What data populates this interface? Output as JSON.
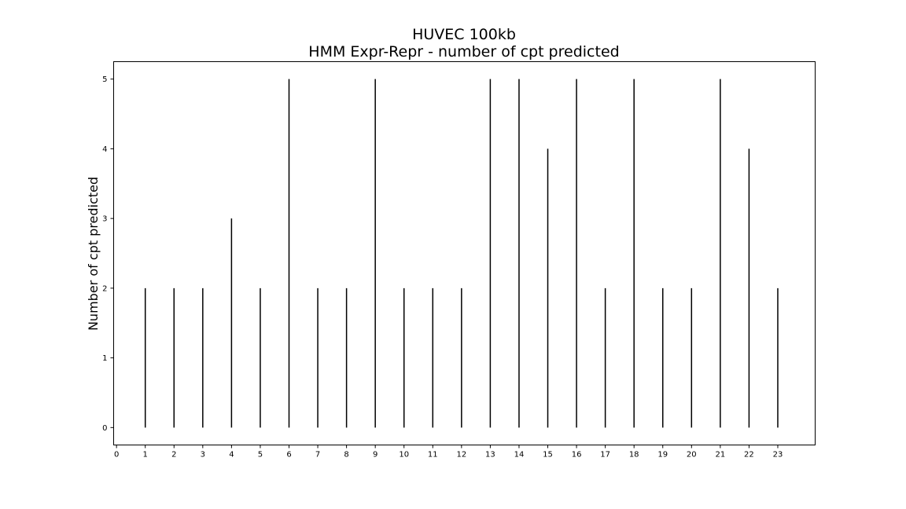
{
  "chart_data": {
    "type": "bar",
    "title": [
      "HUVEC 100kb",
      "HMM Expr-Repr - number of cpt predicted"
    ],
    "xlabel": "",
    "ylabel": "Number of cpt predicted",
    "x": [
      1,
      2,
      3,
      4,
      5,
      6,
      7,
      8,
      9,
      10,
      11,
      12,
      13,
      14,
      15,
      16,
      17,
      18,
      19,
      20,
      21,
      22,
      23
    ],
    "values": [
      2,
      2,
      2,
      3,
      2,
      5,
      2,
      2,
      5,
      2,
      2,
      2,
      5,
      5,
      4,
      5,
      2,
      5,
      2,
      2,
      5,
      4,
      2
    ],
    "xticks": [
      "0",
      "1",
      "2",
      "3",
      "4",
      "5",
      "6",
      "7",
      "8",
      "9",
      "10",
      "11",
      "12",
      "13",
      "14",
      "15",
      "16",
      "17",
      "18",
      "19",
      "20",
      "21",
      "22",
      "23"
    ],
    "yticks": [
      "0",
      "1",
      "2",
      "3",
      "4",
      "5"
    ],
    "xlim": [
      -0.1,
      24.3
    ],
    "ylim": [
      -0.25,
      5.25
    ],
    "grid": false,
    "legend": "none",
    "mark_style": "vertical stems",
    "colors": {
      "stem": "#000000",
      "axes": "#000000",
      "background": "#ffffff"
    }
  }
}
